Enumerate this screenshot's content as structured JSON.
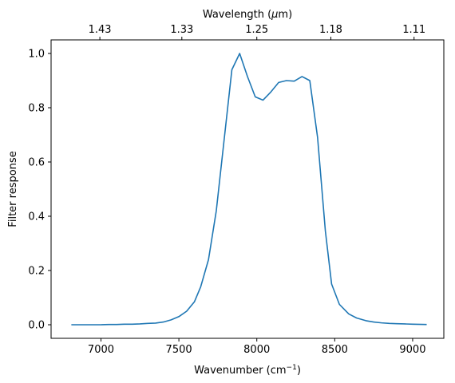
{
  "chart_data": {
    "type": "line",
    "xlabel": "Wavenumber (cm",
    "xlabel_sup": "−1",
    "xlabel_suffix": ")",
    "ylabel": "Filter response",
    "top_xlabel": "Wavelength (",
    "top_xlabel_mu": "μ",
    "top_xlabel_suffix": "m)",
    "xlim": [
      6680,
      9200
    ],
    "ylim": [
      -0.05,
      1.05
    ],
    "x_ticks": [
      7000,
      7500,
      8000,
      8500,
      9000
    ],
    "y_ticks": [
      0.0,
      0.2,
      0.4,
      0.6,
      0.8,
      1.0
    ],
    "x_tick_labels": [
      "7000",
      "7500",
      "8000",
      "8500",
      "9000"
    ],
    "y_tick_labels": [
      "0.0",
      "0.2",
      "0.4",
      "0.6",
      "0.8",
      "1.0"
    ],
    "top_ticks": [
      6993,
      7519,
      8000,
      8475,
      9009
    ],
    "top_tick_labels": [
      "1.43",
      "1.33",
      "1.25",
      "1.18",
      "1.11"
    ],
    "line_color": "#1f77b4",
    "series": [
      {
        "x": [
          6810,
          6900,
          7000,
          7050,
          7100,
          7150,
          7200,
          7250,
          7300,
          7350,
          7400,
          7450,
          7500,
          7550,
          7600,
          7640,
          7690,
          7740,
          7790,
          7840,
          7890,
          7940,
          7990,
          8040,
          8090,
          8140,
          8190,
          8240,
          8290,
          8340,
          8390,
          8440,
          8480,
          8530,
          8590,
          8640,
          8700,
          8750,
          8800,
          8850,
          8900,
          8950,
          9000,
          9090
        ],
        "y": [
          0.0,
          0.0,
          0.0,
          0.001,
          0.001,
          0.002,
          0.002,
          0.003,
          0.005,
          0.006,
          0.01,
          0.018,
          0.03,
          0.05,
          0.085,
          0.14,
          0.24,
          0.42,
          0.68,
          0.94,
          1.0,
          0.915,
          0.84,
          0.828,
          0.858,
          0.893,
          0.9,
          0.898,
          0.915,
          0.9,
          0.69,
          0.345,
          0.15,
          0.075,
          0.04,
          0.025,
          0.015,
          0.01,
          0.007,
          0.005,
          0.004,
          0.003,
          0.002,
          0.001
        ]
      }
    ]
  }
}
